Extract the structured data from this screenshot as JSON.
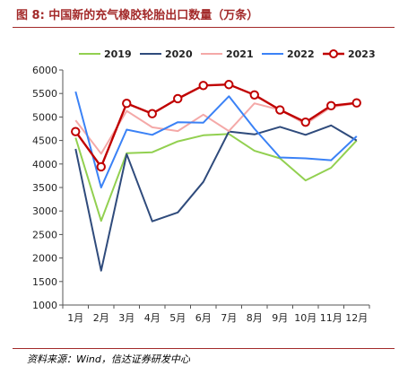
{
  "figure": {
    "title": "图 8:  中国新的充气橡胶轮胎出口数量（万条）",
    "source": "资料来源：Wind，信达证券研发中心"
  },
  "chart_data": {
    "type": "line",
    "title": "中国新的充气橡胶轮胎出口数量（万条）",
    "xlabel": "",
    "ylabel": "",
    "categories": [
      "1月",
      "2月",
      "3月",
      "4月",
      "5月",
      "6月",
      "7月",
      "8月",
      "9月",
      "10月",
      "11月",
      "12月"
    ],
    "ylim": [
      1000,
      6000
    ],
    "yticks": [
      1000,
      1500,
      2000,
      2500,
      3000,
      3500,
      4000,
      4500,
      5000,
      5500,
      6000
    ],
    "grid": false,
    "legend": "top",
    "series": [
      {
        "name": "2019",
        "color": "#92d050",
        "marker": false,
        "values": [
          4560,
          2790,
          4230,
          4250,
          4480,
          4610,
          4640,
          4280,
          4120,
          3650,
          3920,
          4500
        ]
      },
      {
        "name": "2020",
        "color": "#2f4b7c",
        "marker": false,
        "values": [
          4320,
          1730,
          4210,
          2780,
          2970,
          3620,
          4690,
          4630,
          4790,
          4620,
          4820,
          4500
        ]
      },
      {
        "name": "2021",
        "color": "#f4a9a8",
        "marker": false,
        "values": [
          4930,
          4220,
          5130,
          4780,
          4700,
          5050,
          4700,
          5290,
          5150,
          4850,
          5210,
          5290
        ]
      },
      {
        "name": "2022",
        "color": "#3b82f6",
        "marker": false,
        "values": [
          5540,
          3500,
          4730,
          4620,
          4890,
          4880,
          5440,
          4750,
          4140,
          4120,
          4080,
          4590
        ]
      },
      {
        "name": "2023",
        "color": "#c00000",
        "marker": true,
        "values": [
          4690,
          3940,
          5290,
          5070,
          5390,
          5670,
          5690,
          5470,
          5150,
          4890,
          5240,
          5300
        ]
      }
    ]
  }
}
